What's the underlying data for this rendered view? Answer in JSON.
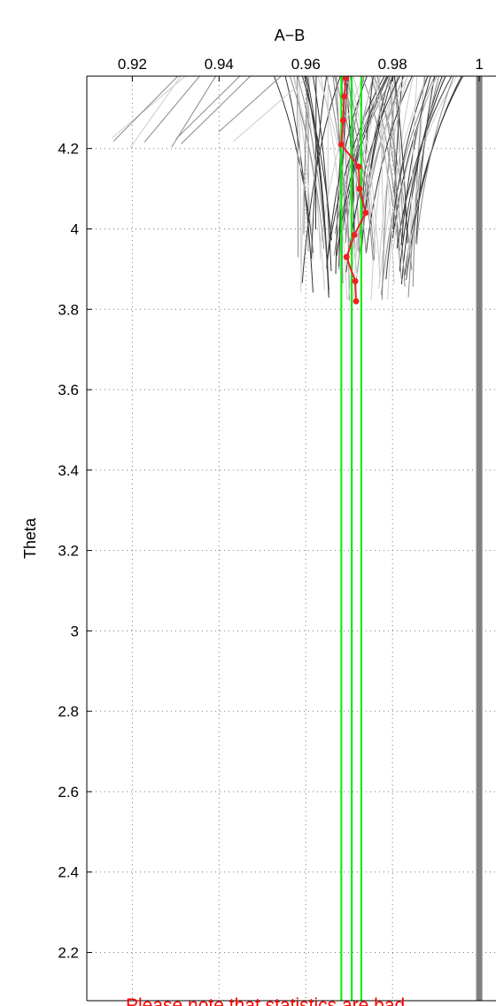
{
  "chart_data": {
    "type": "line",
    "xlabel": "A−B",
    "ylabel": "Theta",
    "xlim": [
      0.9095,
      1.0055
    ],
    "ylim": [
      2.08,
      4.38
    ],
    "x_ticks": [
      0.92,
      0.94,
      0.96,
      0.98,
      1
    ],
    "x_tick_labels": [
      "0.92",
      "0.94",
      "0.96",
      "0.98",
      "1"
    ],
    "y_ticks": [
      2.2,
      2.4,
      2.6,
      2.8,
      3,
      3.2,
      3.4,
      3.6,
      3.8,
      4,
      4.2
    ],
    "y_tick_labels": [
      "2.2",
      "2.4",
      "2.6",
      "2.8",
      "3",
      "3.2",
      "3.4",
      "3.6",
      "3.8",
      "4",
      "4.2"
    ],
    "x_axis_position": "top",
    "grid": true,
    "reference_line": {
      "x": 1,
      "color": "#808080"
    },
    "interval_lines": {
      "x": [
        0.9682,
        0.9706,
        0.9728
      ],
      "color": "#00ee00"
    },
    "series": [
      {
        "color": "#ee2222",
        "points": [
          [
            0.9716,
            3.82
          ],
          [
            0.9714,
            3.87
          ],
          [
            0.9694,
            3.93
          ],
          [
            0.9712,
            3.985
          ],
          [
            0.9738,
            4.04
          ],
          [
            0.9724,
            4.1
          ],
          [
            0.9722,
            4.155
          ],
          [
            0.9682,
            4.21
          ],
          [
            0.9686,
            4.27
          ],
          [
            0.9689,
            4.33
          ],
          [
            0.9692,
            4.375
          ]
        ]
      }
    ],
    "background_curves_color": [
      "#333333",
      "#888888",
      "#cccccc"
    ],
    "annotation": "Please note that statistics are bad",
    "annotation_color": "#ff0000"
  }
}
